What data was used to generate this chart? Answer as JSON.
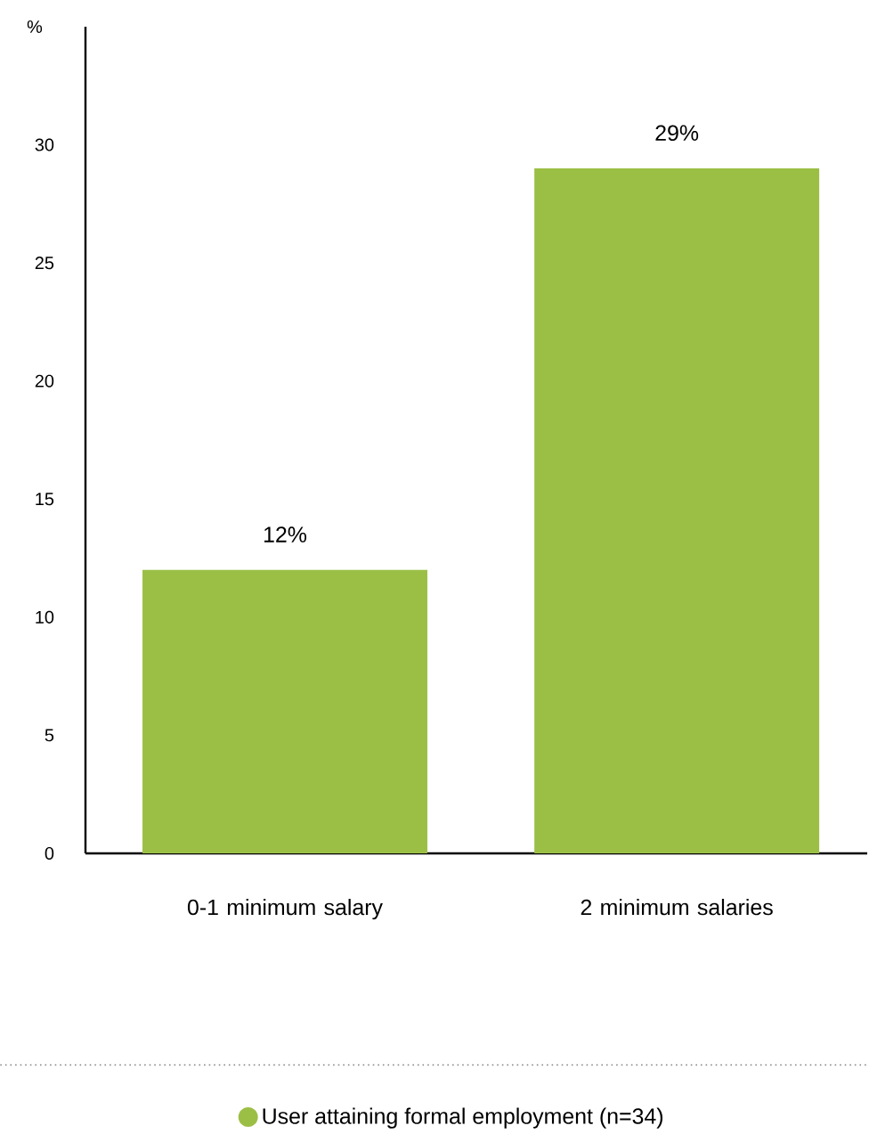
{
  "chart_data": {
    "type": "bar",
    "ylabel": "%",
    "categories": [
      "0-1 minimum salary",
      "2 minimum salaries"
    ],
    "series": [
      {
        "name": "User attaining formal employment (n=34)",
        "color": "#9bbf45",
        "values": [
          12,
          29
        ]
      }
    ],
    "value_labels": [
      "12%",
      "29%"
    ],
    "ylim": [
      0,
      35
    ],
    "yticks": [
      0,
      5,
      10,
      15,
      20,
      25,
      30
    ],
    "legend": "bottom"
  }
}
